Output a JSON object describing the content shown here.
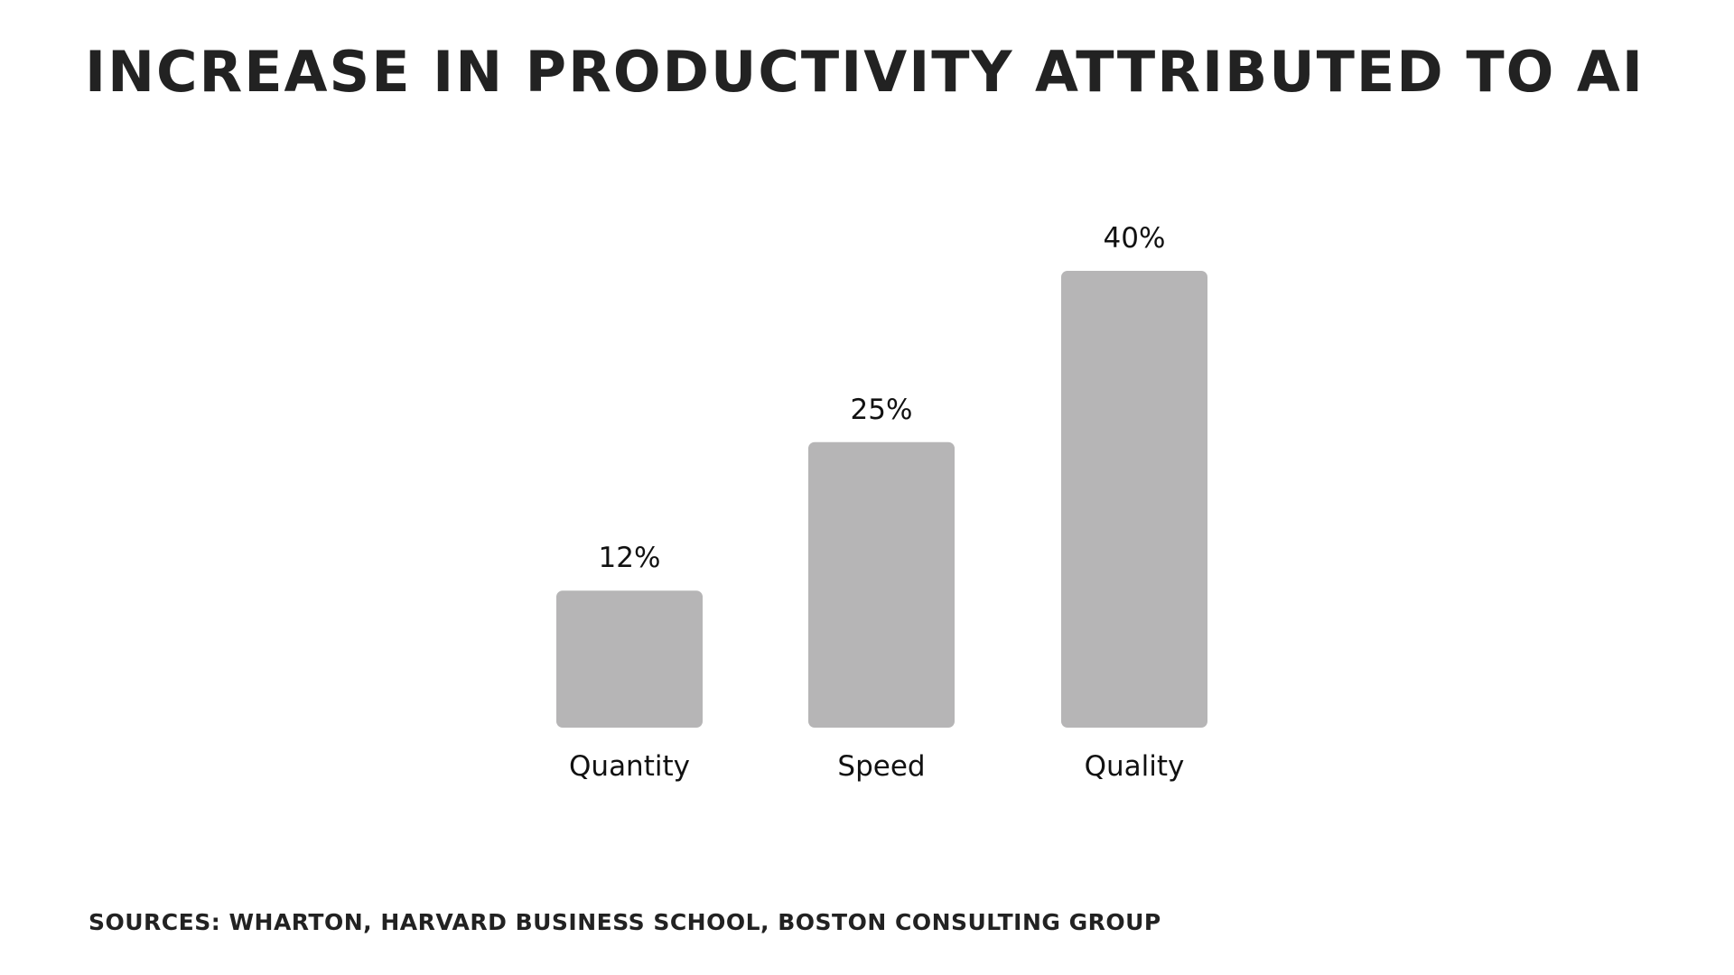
{
  "slide": {
    "title": "INCREASE IN PRODUCTIVITY ATTRIBUTED TO AI",
    "sources": "SOURCES: WHARTON, HARVARD BUSINESS SCHOOL, BOSTON CONSULTING GROUP"
  },
  "chart_data": {
    "type": "bar",
    "title": "INCREASE IN PRODUCTIVITY ATTRIBUTED TO AI",
    "categories": [
      "Quantity",
      "Speed",
      "Quality"
    ],
    "values": [
      12,
      25,
      40
    ],
    "value_labels": [
      "12%",
      "25%",
      "40%"
    ],
    "xlabel": "",
    "ylabel": "",
    "ylim": [
      0,
      40
    ],
    "bar_color": "#b6b5b6",
    "grid": false,
    "legend": "none"
  }
}
